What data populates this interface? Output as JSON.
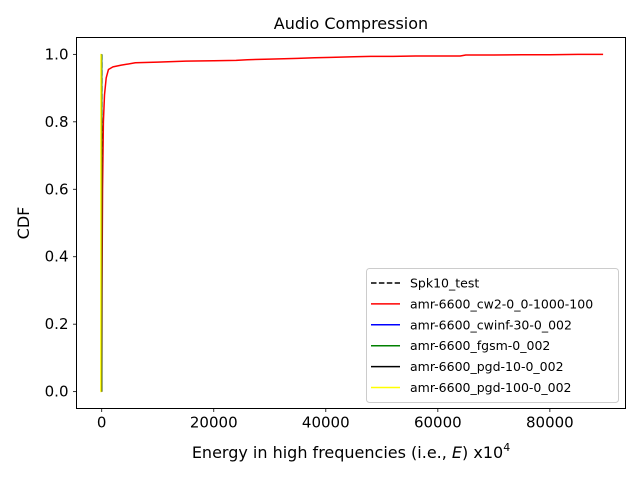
{
  "chart_data": {
    "type": "line",
    "title": "Audio Compression",
    "xlabel": "Energy in high frequencies (i.e., ",
    "xlabel_var": "E",
    "xlabel_suffix": ") x10",
    "xlabel_exp": "4",
    "ylabel": "CDF",
    "xlim": [
      -4500,
      93500
    ],
    "ylim": [
      -0.05,
      1.05
    ],
    "xticks": [
      0,
      20000,
      40000,
      60000,
      80000
    ],
    "xtick_labels": [
      "0",
      "20000",
      "40000",
      "60000",
      "80000"
    ],
    "yticks": [
      0.0,
      0.2,
      0.4,
      0.6,
      0.8,
      1.0
    ],
    "ytick_labels": [
      "0.0",
      "0.2",
      "0.4",
      "0.6",
      "0.8",
      "1.0"
    ],
    "grid": false,
    "legend_position": "lower-right",
    "series": [
      {
        "name": "Spk10_test",
        "color": "#000000",
        "dashed": true,
        "x": [
          0,
          0
        ],
        "y": [
          0.0,
          1.0
        ]
      },
      {
        "name": "amr-6600_cw2-0_0-1000-100",
        "color": "#ff0000",
        "dashed": false,
        "x": [
          0,
          50,
          150,
          300,
          500,
          800,
          1200,
          2000,
          3500,
          6000,
          10000,
          15000,
          20000,
          24000,
          26000,
          30000,
          35000,
          38000,
          41000,
          45000,
          48000,
          52000,
          56000,
          60000,
          64000,
          65000,
          70000,
          75000,
          80000,
          85000,
          89500
        ],
        "y": [
          0.0,
          0.3,
          0.6,
          0.8,
          0.88,
          0.93,
          0.955,
          0.963,
          0.968,
          0.975,
          0.977,
          0.98,
          0.981,
          0.982,
          0.984,
          0.986,
          0.988,
          0.99,
          0.991,
          0.993,
          0.994,
          0.994,
          0.995,
          0.995,
          0.995,
          0.998,
          0.998,
          0.999,
          0.999,
          1.0,
          1.0
        ]
      },
      {
        "name": "amr-6600_cwinf-30-0_002",
        "color": "#0000ff",
        "dashed": false,
        "x": [
          -50,
          -50
        ],
        "y": [
          0.0,
          1.0
        ]
      },
      {
        "name": "amr-6600_fgsm-0_002",
        "color": "#008000",
        "dashed": false,
        "x": [
          -20,
          -20
        ],
        "y": [
          0.0,
          1.0
        ]
      },
      {
        "name": "amr-6600_pgd-10-0_002",
        "color": "#000000",
        "dashed": false,
        "x": [
          -80,
          -80
        ],
        "y": [
          0.0,
          1.0
        ]
      },
      {
        "name": "amr-6600_pgd-100-0_002",
        "color": "#ffff00",
        "dashed": false,
        "x": [
          -200,
          -150,
          -120,
          -80
        ],
        "y": [
          0.0,
          0.0,
          1.0,
          1.0
        ]
      }
    ]
  }
}
